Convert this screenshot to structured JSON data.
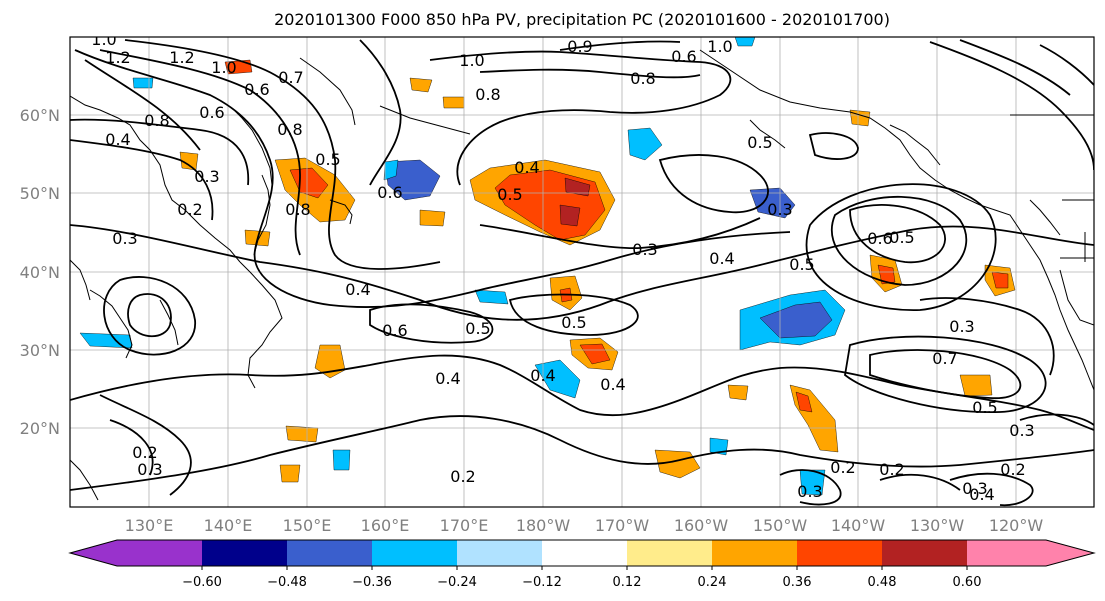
{
  "title": "2020101300 F000 850 hPa PV, precipitation PC (2020101600 - 2020101700)",
  "map": {
    "lon_labels": [
      "130°E",
      "140°E",
      "150°E",
      "160°E",
      "170°E",
      "180°W",
      "170°W",
      "160°W",
      "150°W",
      "140°W",
      "130°W",
      "120°W"
    ],
    "lat_labels": [
      "60°N",
      "50°N",
      "40°N",
      "30°N",
      "20°N"
    ],
    "contour_labels": [
      "1.0",
      "1.2",
      "1.2",
      "1.0",
      "0.7",
      "0.6",
      "0.8",
      "0.4",
      "0.8",
      "0.3",
      "0.6",
      "0.2",
      "0.8",
      "0.5",
      "0.6",
      "0.4",
      "0.5",
      "0.9",
      "1.0",
      "1.0",
      "0.8",
      "0.6",
      "0.8",
      "0.5",
      "0.3",
      "0.3",
      "0.4",
      "0.5",
      "0.6",
      "0.5",
      "0.4",
      "0.6",
      "0.5",
      "0.5",
      "0.4",
      "0.4",
      "0.4",
      "0.2",
      "0.2",
      "0.3",
      "0.2",
      "0.2",
      "0.3",
      "0.2",
      "0.3",
      "0.4",
      "0.3",
      "0.7",
      "0.5",
      "0.3",
      "0.3"
    ]
  },
  "colorbar": {
    "tick_labels": [
      "−0.60",
      "−0.48",
      "−0.36",
      "−0.24",
      "−0.12",
      "0.12",
      "0.24",
      "0.36",
      "0.48",
      "0.60"
    ],
    "colors": [
      "#9932cc",
      "#00008b",
      "#3a5fcd",
      "#00bfff",
      "#b0e2ff",
      "#ffffff",
      "#ffec8b",
      "#ffa500",
      "#ff4500",
      "#b22222",
      "#ff82ab"
    ]
  }
}
